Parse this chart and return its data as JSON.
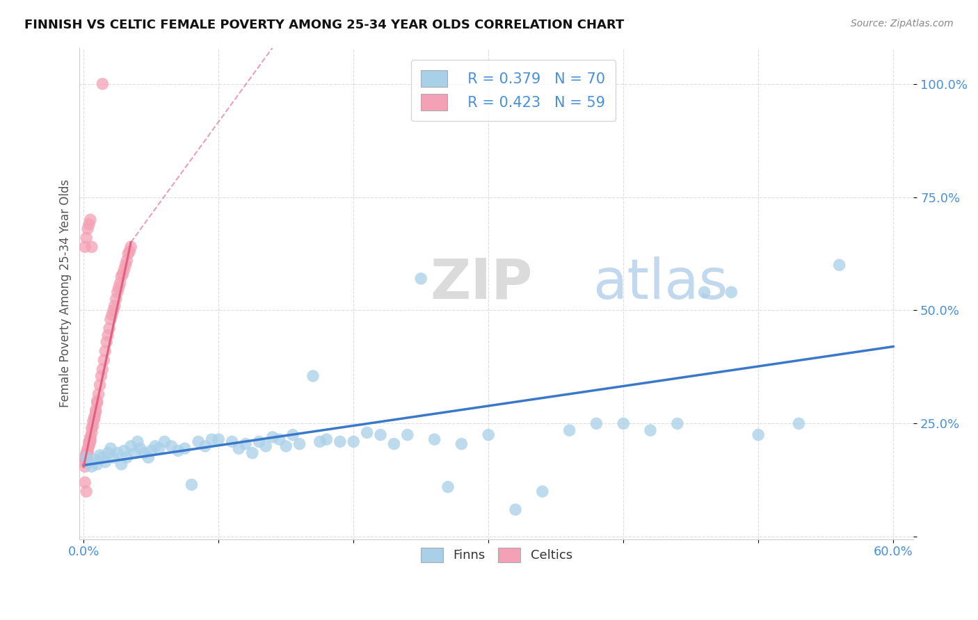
{
  "title": "FINNISH VS CELTIC FEMALE POVERTY AMONG 25-34 YEAR OLDS CORRELATION CHART",
  "source": "Source: ZipAtlas.com",
  "ylabel": "Female Poverty Among 25-34 Year Olds",
  "xlim": [
    0.0,
    0.6
  ],
  "ylim": [
    0.0,
    1.08
  ],
  "finns_color": "#a8d0e8",
  "celtics_color": "#f4a0b5",
  "finns_line_color": "#3a78c9",
  "celtics_line_color": "#e06080",
  "watermark_top": "ZIP",
  "watermark_bot": "atlas",
  "legend_r_finns": "R = 0.379",
  "legend_n_finns": "N = 70",
  "legend_r_celtics": "R = 0.423",
  "legend_n_celtics": "N = 59",
  "finns_x": [
    0.002,
    0.004,
    0.006,
    0.008,
    0.01,
    0.012,
    0.014,
    0.016,
    0.018,
    0.02,
    0.022,
    0.025,
    0.028,
    0.03,
    0.032,
    0.035,
    0.038,
    0.04,
    0.042,
    0.045,
    0.048,
    0.05,
    0.053,
    0.056,
    0.06,
    0.065,
    0.07,
    0.075,
    0.08,
    0.085,
    0.09,
    0.095,
    0.1,
    0.11,
    0.115,
    0.12,
    0.125,
    0.13,
    0.135,
    0.14,
    0.145,
    0.15,
    0.155,
    0.16,
    0.17,
    0.175,
    0.18,
    0.19,
    0.2,
    0.21,
    0.22,
    0.23,
    0.24,
    0.25,
    0.26,
    0.27,
    0.28,
    0.3,
    0.32,
    0.34,
    0.36,
    0.38,
    0.4,
    0.42,
    0.44,
    0.46,
    0.48,
    0.5,
    0.53,
    0.56
  ],
  "finns_y": [
    0.175,
    0.165,
    0.155,
    0.17,
    0.16,
    0.18,
    0.175,
    0.165,
    0.185,
    0.195,
    0.175,
    0.185,
    0.16,
    0.19,
    0.175,
    0.2,
    0.185,
    0.21,
    0.195,
    0.185,
    0.175,
    0.19,
    0.2,
    0.195,
    0.21,
    0.2,
    0.19,
    0.195,
    0.115,
    0.21,
    0.2,
    0.215,
    0.215,
    0.21,
    0.195,
    0.205,
    0.185,
    0.21,
    0.2,
    0.22,
    0.215,
    0.2,
    0.225,
    0.205,
    0.355,
    0.21,
    0.215,
    0.21,
    0.21,
    0.23,
    0.225,
    0.205,
    0.225,
    0.57,
    0.215,
    0.11,
    0.205,
    0.225,
    0.06,
    0.1,
    0.235,
    0.25,
    0.25,
    0.235,
    0.25,
    0.54,
    0.54,
    0.225,
    0.25,
    0.6
  ],
  "celtics_x": [
    0.001,
    0.001,
    0.001,
    0.002,
    0.002,
    0.002,
    0.003,
    0.003,
    0.003,
    0.004,
    0.004,
    0.004,
    0.005,
    0.005,
    0.005,
    0.006,
    0.006,
    0.007,
    0.007,
    0.008,
    0.008,
    0.009,
    0.009,
    0.01,
    0.01,
    0.011,
    0.012,
    0.013,
    0.014,
    0.015,
    0.016,
    0.017,
    0.018,
    0.019,
    0.02,
    0.021,
    0.022,
    0.023,
    0.024,
    0.025,
    0.026,
    0.027,
    0.028,
    0.029,
    0.03,
    0.031,
    0.032,
    0.033,
    0.034,
    0.035,
    0.001,
    0.002,
    0.003,
    0.004,
    0.005,
    0.006,
    0.001,
    0.002,
    0.014
  ],
  "celtics_y": [
    0.175,
    0.165,
    0.155,
    0.185,
    0.18,
    0.175,
    0.195,
    0.19,
    0.185,
    0.21,
    0.205,
    0.2,
    0.22,
    0.215,
    0.21,
    0.24,
    0.23,
    0.255,
    0.245,
    0.265,
    0.26,
    0.28,
    0.275,
    0.3,
    0.295,
    0.315,
    0.335,
    0.355,
    0.37,
    0.39,
    0.41,
    0.43,
    0.445,
    0.46,
    0.48,
    0.49,
    0.5,
    0.51,
    0.525,
    0.54,
    0.55,
    0.56,
    0.575,
    0.58,
    0.59,
    0.6,
    0.61,
    0.625,
    0.63,
    0.64,
    0.64,
    0.66,
    0.68,
    0.69,
    0.7,
    0.64,
    0.12,
    0.1,
    1.0
  ]
}
